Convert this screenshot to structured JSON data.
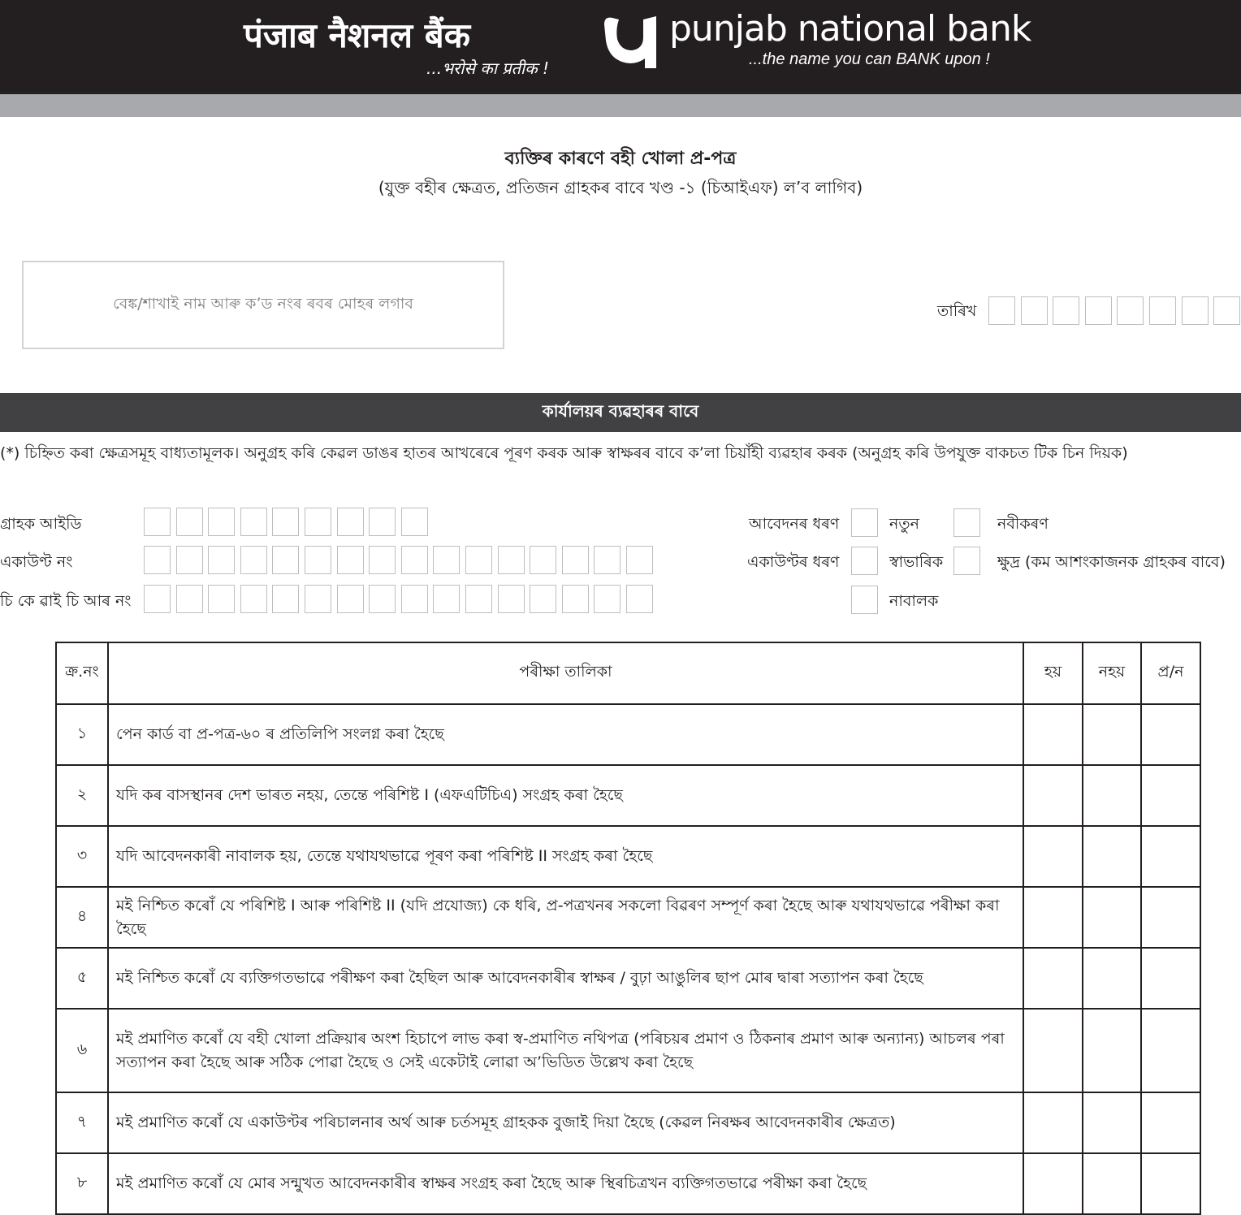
{
  "header": {
    "hindi_name": "पंजाब नैशनल बैंक",
    "hindi_tagline": "...भरोसे का प्रतीक !",
    "english_name": "punjab national bank",
    "english_tagline": "...the name you can BANK upon !",
    "logo_icon": "pnb-logo-icon",
    "background": "#231f20"
  },
  "form": {
    "title": "ব্যক্তিৰ কাৰণে বহী খোলা প্ৰ-পত্ৰ",
    "subtitle": "(যুক্ত বহীৰ ক্ষেত্ৰত, প্ৰতিজন গ্ৰাহকৰ বাবে খণ্ড -১ (চিআইএফ) ল’ব লাগিব)"
  },
  "stamp": {
    "placeholder": "বেঙ্ক/শাখাই নাম আৰু ক’ড নংৰ ৰবৰ মোহৰ লগাব"
  },
  "date": {
    "label": "তাৰিখ"
  },
  "office_use": {
    "label": "কাৰ্যালয়ৰ ব্যৱহাৰৰ বাবে"
  },
  "instruction": "(*) চিহ্নিত কৰা ক্ষেত্ৰসমূহ বাধ্যতামূলক। অনুগ্ৰহ কৰি কেৱল ডাঙৰ হাতৰ আখৰেৰে পূৰণ কৰক আৰু স্বাক্ষৰৰ বাবে ক’লা চিয়াঁহী ব্যৱহাৰ কৰক (অনুগ্ৰহ কৰি উপযুক্ত বাকচত টিক চিন দিয়ক)",
  "fields": {
    "customer_id": "গ্ৰাহক আইডি",
    "account_no": "একাউণ্ট নং",
    "ckyc_no": "চি কে ৱাই চি আৰ নং"
  },
  "application_type": {
    "label": "আবেদনৰ ধৰণ",
    "options": [
      "নতুন",
      "নবীকৰণ"
    ]
  },
  "account_type": {
    "label": "একাউণ্টৰ ধৰণ",
    "options": [
      "স্বাভাৰিক",
      "ক্ষুদ্ৰ (কম আশংকাজনক গ্ৰাহকৰ বাবে)",
      "নাবালক"
    ]
  },
  "table": {
    "headers": [
      "ক্ৰ.নং",
      "পৰীক্ষা তালিকা",
      "হয়",
      "নহয়",
      "প্ৰ/ন"
    ],
    "rows": [
      {
        "n": "১",
        "text": "পেন কাৰ্ড বা প্ৰ-পত্ৰ-৬০ ৰ  প্ৰতিলিপি সংলগ্ন কৰা হৈছে"
      },
      {
        "n": "২",
        "text": "যদি কৰ বাসস্থানৰ দেশ ভাৰত নহয়, তেন্তে পৰিশিষ্ট I (এফএটিচিএ) সংগ্ৰহ কৰা  হৈছে"
      },
      {
        "n": "৩",
        "text": "যদি আবেদনকাৰী নাবালক হয়, তেন্তে যথাযথভাৱে পূৰণ কৰা পৰিশিষ্ট II সংগ্ৰহ কৰা হৈছে"
      },
      {
        "n": "৪",
        "text": "মই নিশ্চিত কৰোঁ যে পৰিশিষ্ট I আৰু পৰিশিষ্ট II (যদি প্ৰযোজ্য) কে ধৰি, প্ৰ-পত্ৰখনৰ সকলো বিৱৰণ সম্পূৰ্ণ কৰা হৈছে আৰু যথাযথভাৱে পৰীক্ষা কৰা হৈছে"
      },
      {
        "n": "৫",
        "text": "মই নিশ্চিত কৰোঁ যে ব্যক্তিগতভাৱে পৰীক্ষণ কৰা হৈছিল আৰু আবেদনকাৰীৰ স্বাক্ষৰ / বুঢ়া আঙুলিৰ ছাপ মোৰ দ্বাৰা সত্যাপন কৰা হৈছে"
      },
      {
        "n": "৬",
        "text": "মই প্ৰমাণিত কৰোঁ যে বহী খোলা প্ৰক্ৰিয়াৰ অংশ হিচাপে  লাভ কৰা স্ব-প্ৰমাণিত নথিপত্ৰ (পৰিচয়ৰ প্ৰমাণ ও ঠিকনাৰ প্ৰমাণ আৰু অন্যান্য)  আচলৰ পৰা সত্যাপন কৰা হৈছে আৰু সঠিক পোৱা হৈছে ও সেই একেটাই লোৱা অ’ভিডিত উল্লেখ কৰা হৈছে"
      },
      {
        "n": "৭",
        "text": "মই প্ৰমাণিত কৰোঁ যে একাউণ্টৰ পৰিচালনাৰ অৰ্থ আৰু চৰ্তসমূহ গ্ৰাহকক বুজাই দিয়া হৈছে (কেৱল নিৰক্ষৰ আবেদনকাৰীৰ ক্ষেত্ৰত)"
      },
      {
        "n": "৮",
        "text": "মই প্ৰমাণিত কৰোঁ যে মোৰ সন্মুখত আবেদনকাৰীৰ স্বাক্ষৰ সংগ্ৰহ কৰা হৈছে আৰু স্থিৰচিত্ৰখন ব্যক্তিগতভাৱে পৰীক্ষা কৰা হৈছে"
      }
    ]
  }
}
